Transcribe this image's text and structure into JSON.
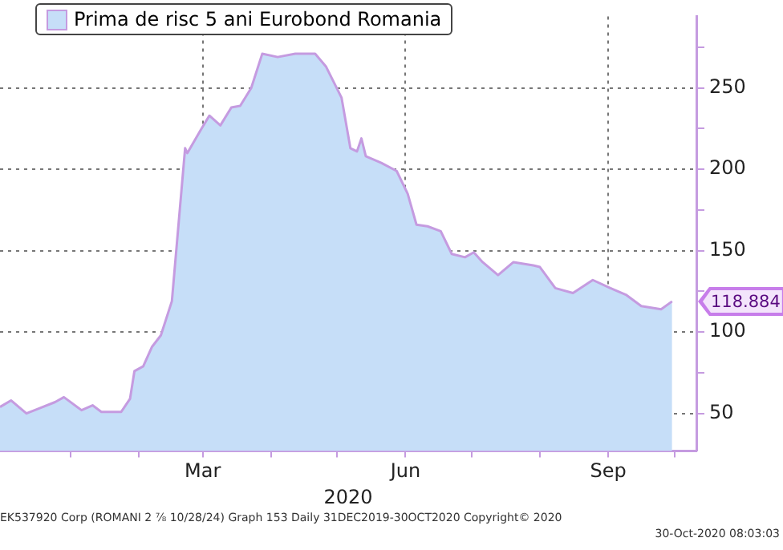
{
  "chart_data": {
    "type": "area",
    "xlabel": "2020",
    "x": [
      "2019-11-30",
      "2019-12-05",
      "2019-12-12",
      "2019-12-25",
      "2019-12-29",
      "2020-01-06",
      "2020-01-11",
      "2020-01-15",
      "2020-01-24",
      "2020-01-28",
      "2020-01-30",
      "2020-02-03",
      "2020-02-07",
      "2020-02-11",
      "2020-02-16",
      "2020-02-22",
      "2020-02-23",
      "2020-02-29",
      "2020-03-04",
      "2020-03-09",
      "2020-03-14",
      "2020-03-18",
      "2020-03-23",
      "2020-03-28",
      "2020-04-04",
      "2020-04-12",
      "2020-04-21",
      "2020-04-26",
      "2020-05-03",
      "2020-05-07",
      "2020-05-10",
      "2020-05-12",
      "2020-05-14",
      "2020-05-21",
      "2020-05-28",
      "2020-06-02",
      "2020-06-06",
      "2020-06-11",
      "2020-06-17",
      "2020-06-22",
      "2020-06-28",
      "2020-07-02",
      "2020-07-06",
      "2020-07-13",
      "2020-07-20",
      "2020-07-29",
      "2020-08-01",
      "2020-08-08",
      "2020-08-16",
      "2020-08-25",
      "2020-09-02",
      "2020-09-09",
      "2020-09-16",
      "2020-09-25",
      "2020-09-30"
    ],
    "series": [
      {
        "name": "Prima de risc 5 ani Eurobond Romania",
        "color": "#c6def8",
        "values": [
          54,
          58,
          50,
          57,
          60,
          52,
          55,
          51,
          51,
          59,
          76,
          79,
          91,
          98,
          119,
          213,
          210,
          224,
          233,
          227,
          238,
          239,
          250,
          271,
          269,
          271,
          271,
          263,
          244,
          213,
          211,
          219,
          208,
          204,
          199,
          185,
          166,
          165,
          162,
          148,
          146,
          149,
          143,
          135,
          143,
          141,
          140,
          127,
          124,
          132,
          127,
          123,
          116,
          114,
          118.884
        ]
      }
    ],
    "xlim": [
      "2019-11-30",
      "2020-10-11"
    ],
    "xticks": [
      {
        "value": "2020-01-01",
        "label": null
      },
      {
        "value": "2020-02-01",
        "label": null
      },
      {
        "value": "2020-03-01",
        "label": "Mar"
      },
      {
        "value": "2020-04-01",
        "label": null
      },
      {
        "value": "2020-05-01",
        "label": null
      },
      {
        "value": "2020-06-01",
        "label": "Jun"
      },
      {
        "value": "2020-07-01",
        "label": null
      },
      {
        "value": "2020-08-01",
        "label": null
      },
      {
        "value": "2020-09-01",
        "label": "Sep"
      },
      {
        "value": "2020-10-01",
        "label": null
      }
    ],
    "ylim": [
      27,
      294
    ],
    "yticks": [
      50,
      {
        "value": 75,
        "label": null
      },
      100,
      {
        "value": 125,
        "label": null
      },
      150,
      {
        "value": 175,
        "label": null
      },
      200,
      {
        "value": 225,
        "label": null
      },
      250,
      {
        "value": 275,
        "label": null
      }
    ],
    "grid": true,
    "legend": "top left",
    "annotations": [
      {
        "text": "118.884",
        "x": "2020-09-30",
        "y": 118.884
      },
      "EK537920 Corp (ROMANI 2 ⅞ 10/28/24) Graph 153  Daily 31DEC2019-30OCT2020 Copyright© 2020",
      "30-Oct-2020 08:03:03"
    ]
  }
}
